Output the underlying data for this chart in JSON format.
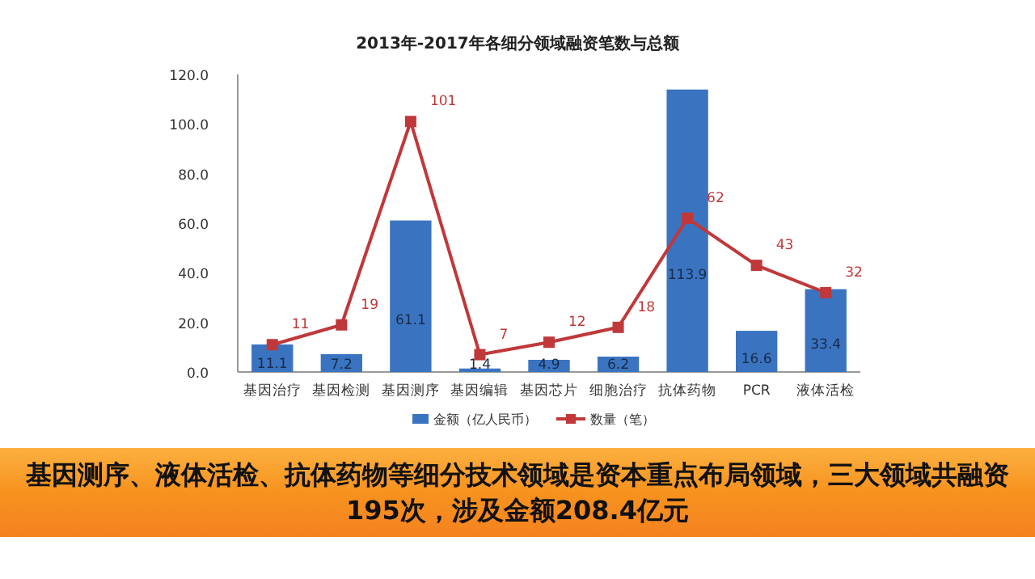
{
  "chart_data": {
    "type": "bar",
    "title": "2013年-2017年各细分领域融资笔数与总额",
    "categories": [
      "基因治疗",
      "基因检测",
      "基因测序",
      "基因编辑",
      "基因芯片",
      "细胞治疗",
      "抗体药物",
      "PCR",
      "液体活检"
    ],
    "series": [
      {
        "name": "金额（亿人民币）",
        "color": "#3a74c0",
        "values": [
          11.1,
          7.2,
          61.1,
          1.4,
          4.9,
          6.2,
          113.9,
          16.6,
          33.4
        ]
      },
      {
        "name": "数量（笔）",
        "type": "line",
        "color": "#c0383a",
        "marker": "square",
        "values": [
          11,
          19,
          101,
          7,
          12,
          18,
          62,
          43,
          32
        ]
      }
    ],
    "ylim": [
      0,
      120
    ],
    "yticks": [
      {
        "value": 0,
        "label": "0.0"
      },
      {
        "value": 20,
        "label": "20.0"
      },
      {
        "value": 40,
        "label": "40.0"
      },
      {
        "value": 60,
        "label": "60.0"
      },
      {
        "value": 80,
        "label": "80.0"
      },
      {
        "value": 100,
        "label": "100.0"
      },
      {
        "value": 120,
        "label": "120.0"
      }
    ],
    "data_labels": true,
    "legend": "bottom",
    "grid": false,
    "annotations": [
      "基因测序、液体活检、抗体药物等细分技术领域是资本重点布局领域，三大领域共融资195次，涉及金额208.4亿元"
    ]
  }
}
